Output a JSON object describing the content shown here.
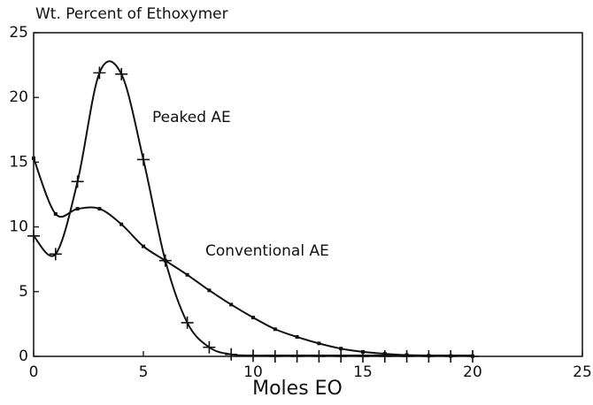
{
  "chart_data": {
    "type": "line",
    "title": "Wt. Percent of Ethoxymer",
    "x_label": "Moles EO",
    "xlim": [
      0,
      25
    ],
    "xticks": [
      0,
      5,
      10,
      15,
      20,
      25
    ],
    "ylim": [
      0,
      25
    ],
    "yticks": [
      0,
      5,
      10,
      15,
      20,
      25
    ],
    "grid": false,
    "x": [
      0,
      1,
      2,
      3,
      4,
      5,
      6,
      7,
      8,
      9,
      10,
      11,
      12,
      13,
      14,
      15,
      16,
      17,
      18,
      19,
      20
    ],
    "series": [
      {
        "name": "Peaked AE",
        "color": "#111111",
        "marker": "plus",
        "values": [
          9.3,
          7.9,
          13.5,
          21.9,
          21.8,
          15.2,
          7.4,
          2.6,
          0.7,
          0.15,
          0.05,
          0,
          0,
          0,
          0,
          0,
          0,
          0,
          0,
          0,
          0
        ]
      },
      {
        "name": "Conventional AE",
        "color": "#111111",
        "marker": "square",
        "values": [
          15.3,
          11.0,
          11.4,
          11.4,
          10.2,
          8.5,
          7.4,
          6.3,
          5.1,
          4.0,
          3.0,
          2.1,
          1.5,
          1.0,
          0.6,
          0.35,
          0.2,
          0.1,
          0.05,
          0.03,
          0.02
        ]
      }
    ]
  }
}
